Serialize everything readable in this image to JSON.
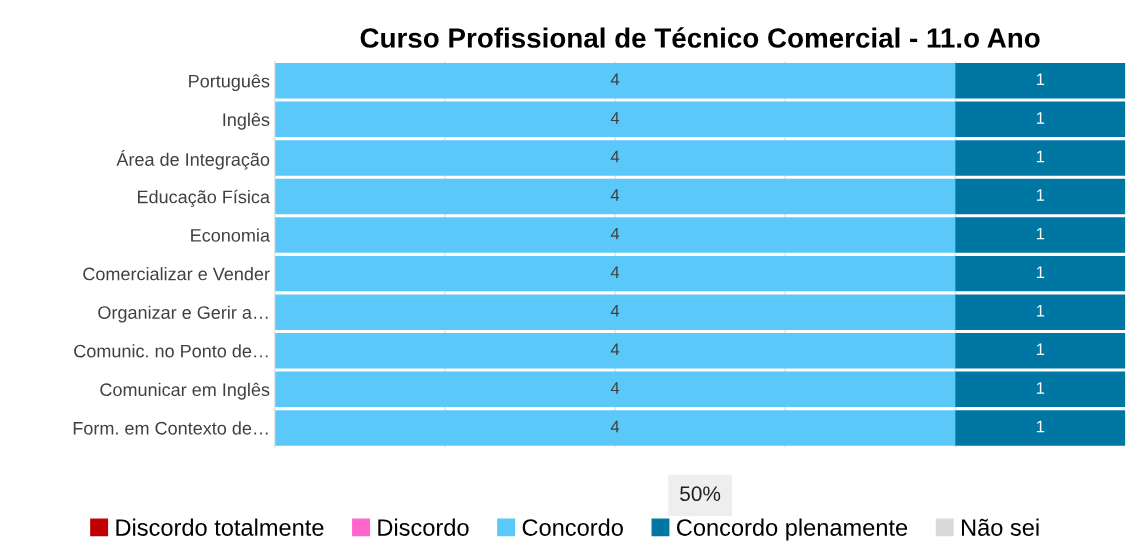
{
  "chart_data": {
    "type": "bar",
    "orientation": "horizontal",
    "stacked": true,
    "title": "Curso Profissional de Técnico Comercial - 11.o Ano",
    "categories": [
      "Português",
      "Inglês",
      "Área de Integração",
      "Educação Física",
      "Economia",
      "Comercializar e Vender",
      "Organizar e Gerir a…",
      "Comunic. no Ponto de…",
      "Comunicar em Inglês",
      "Form. em Contexto de…"
    ],
    "series": [
      {
        "name": "Discordo totalmente",
        "color": "#c00000",
        "values": [
          null,
          null,
          null,
          null,
          null,
          null,
          null,
          null,
          null,
          null
        ]
      },
      {
        "name": "Discordo",
        "color": "#ff66cc",
        "values": [
          null,
          null,
          null,
          null,
          null,
          null,
          null,
          null,
          null,
          null
        ]
      },
      {
        "name": "Concordo",
        "color": "#5bc8fa",
        "values": [
          4,
          4,
          4,
          4,
          4,
          4,
          4,
          4,
          4,
          4
        ]
      },
      {
        "name": "Concordo plenamente",
        "color": "#0077a3",
        "values": [
          1,
          1,
          1,
          1,
          1,
          1,
          1,
          1,
          1,
          1
        ]
      },
      {
        "name": "Não sei",
        "color": "#d9d9d9",
        "values": [
          null,
          null,
          null,
          null,
          null,
          null,
          null,
          null,
          null,
          null
        ]
      }
    ],
    "xlim": [
      0,
      5
    ],
    "xticks": [
      {
        "value": 1,
        "label": null
      },
      {
        "value": 2,
        "label": null
      },
      {
        "value": 3,
        "label": null
      },
      {
        "value": 4,
        "label": null
      }
    ],
    "annotations": [
      "50%"
    ],
    "grid": "x",
    "data_labels": true,
    "legend": "bottom"
  }
}
